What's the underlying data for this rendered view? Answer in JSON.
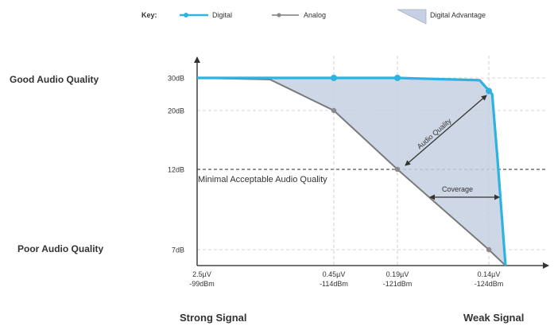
{
  "chart_data": {
    "type": "line",
    "legend": {
      "title": "Key:",
      "placement": "top",
      "entries": [
        {
          "name": "Digital",
          "color": "#2db3e0"
        },
        {
          "name": "Analog",
          "color": "#7a7a7a"
        },
        {
          "name": "Digital Advantage",
          "color": "#c5d0e2"
        }
      ]
    },
    "y_ticks": [
      "30dB",
      "20dB",
      "12dB",
      "7dB"
    ],
    "y_tick_values": [
      30,
      20,
      12,
      7
    ],
    "x_ticks": [
      {
        "uv": "2.5µV",
        "dbm": "-99dBm"
      },
      {
        "uv": "0.45µV",
        "dbm": "-114dBm"
      },
      {
        "uv": "0.19µV",
        "dbm": "-121dBm"
      },
      {
        "uv": "0.14µV",
        "dbm": "-124dBm"
      }
    ],
    "x_tick_values": [
      -99,
      -114,
      -121,
      -124
    ],
    "xlim": [
      -99,
      -126
    ],
    "ylim": [
      4,
      31
    ],
    "series": [
      {
        "name": "Digital",
        "x": [
          -99,
          -114,
          -121,
          -123.7,
          -124.4,
          -125,
          -126
        ],
        "y": [
          30,
          30,
          30,
          29.3,
          25,
          14,
          4
        ]
      },
      {
        "name": "Analog",
        "x": [
          -99,
          -107,
          -114,
          -121,
          -124,
          -126
        ],
        "y": [
          30,
          29.5,
          20,
          12,
          7,
          4
        ]
      }
    ],
    "markers": {
      "Digital": [
        [
          -114,
          30
        ],
        [
          -121,
          30
        ],
        [
          -124,
          26
        ]
      ],
      "Analog": [
        [
          -114,
          20
        ],
        [
          -121,
          12
        ],
        [
          -124,
          7
        ]
      ]
    },
    "y_annotations": [
      "Good Audio Quality",
      "Poor Audio Quality"
    ],
    "x_annotations": [
      "Strong Signal",
      "Weak Signal"
    ],
    "threshold_label": "Minimal Acceptable Audio Quality",
    "threshold_value": 12,
    "arrow_labels": [
      "Audio Quality",
      "Coverage"
    ],
    "grid": "dashed"
  }
}
